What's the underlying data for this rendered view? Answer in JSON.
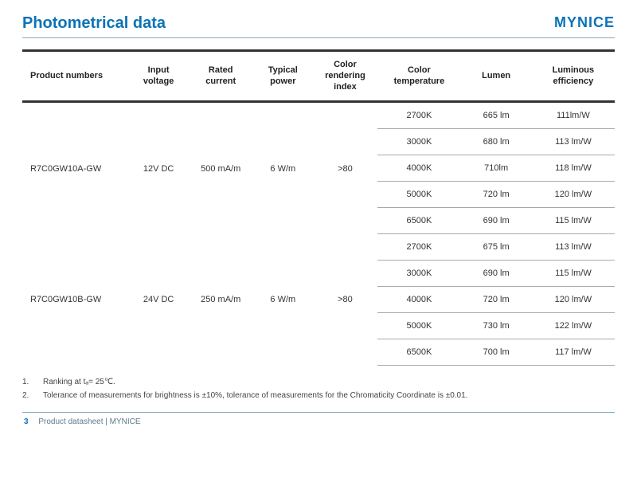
{
  "title": "Photometrical data",
  "brand": "MYNICE",
  "columns": [
    "Product numbers",
    "Input voltage",
    "Rated current",
    "Typical power",
    "Color rendering index",
    "Color temperature",
    "Lumen",
    "Luminous efficiency"
  ],
  "products": [
    {
      "number": "R7C0GW10A-GW",
      "input_voltage": "12V DC",
      "rated_current": "500 mA/m",
      "typical_power": "6 W/m",
      "cri": ">80",
      "variants": [
        {
          "ct": "2700K",
          "lumen": "665 lm",
          "eff": "111lm/W"
        },
        {
          "ct": "3000K",
          "lumen": "680 lm",
          "eff": "113 lm/W"
        },
        {
          "ct": "4000K",
          "lumen": "710lm",
          "eff": "118 lm/W"
        },
        {
          "ct": "5000K",
          "lumen": "720 lm",
          "eff": "120 lm/W"
        },
        {
          "ct": "6500K",
          "lumen": "690 lm",
          "eff": "115 lm/W"
        }
      ]
    },
    {
      "number": "R7C0GW10B-GW",
      "input_voltage": "24V DC",
      "rated_current": "250 mA/m",
      "typical_power": "6 W/m",
      "cri": ">80",
      "variants": [
        {
          "ct": "2700K",
          "lumen": "675 lm",
          "eff": "113 lm/W"
        },
        {
          "ct": "3000K",
          "lumen": "690 lm",
          "eff": "115 lm/W"
        },
        {
          "ct": "4000K",
          "lumen": "720 lm",
          "eff": "120 lm/W"
        },
        {
          "ct": "5000K",
          "lumen": "730 lm",
          "eff": "122 lm/W"
        },
        {
          "ct": "6500K",
          "lumen": "700 lm",
          "eff": "117 lm/W"
        }
      ]
    }
  ],
  "footnotes": [
    "Ranking at tₐ= 25℃.",
    "Tolerance of measurements for brightness is ±10%, tolerance of measurements for the Chromaticity Coordinate is ±0.01."
  ],
  "footer": {
    "page": "3",
    "text": "Product datasheet | MYNICE"
  },
  "style": {
    "accent_color": "#0b73b7",
    "text_color": "#333333",
    "border_heavy": "#333333",
    "border_light": "#aaaaaa",
    "footer_rule": "#7aa3bd",
    "title_fontsize": 20,
    "brand_fontsize": 18,
    "table_fontsize": 11,
    "footnote_fontsize": 10,
    "col_widths_pct": [
      18,
      10,
      11,
      10,
      11,
      14,
      12,
      14
    ]
  }
}
